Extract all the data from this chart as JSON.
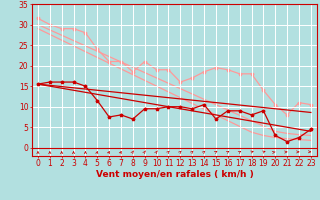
{
  "background_color": "#b2e0e0",
  "grid_color": "#ffffff",
  "line_color_dark": "#cc0000",
  "line_color_light": "#ff9999",
  "xlabel": "Vent moyen/en rafales ( km/h )",
  "xlabel_color": "#cc0000",
  "xlabel_fontsize": 6.5,
  "tick_color": "#cc0000",
  "tick_fontsize": 5.5,
  "xlim": [
    -0.5,
    23.5
  ],
  "ylim": [
    -2,
    35
  ],
  "yticks": [
    0,
    5,
    10,
    15,
    20,
    25,
    30,
    35
  ],
  "xticks": [
    0,
    1,
    2,
    3,
    4,
    5,
    6,
    7,
    8,
    9,
    10,
    11,
    12,
    13,
    14,
    15,
    16,
    17,
    18,
    19,
    20,
    21,
    22,
    23
  ],
  "x": [
    0,
    1,
    2,
    3,
    4,
    5,
    6,
    7,
    8,
    9,
    10,
    11,
    12,
    13,
    14,
    15,
    16,
    17,
    18,
    19,
    20,
    21,
    22,
    23
  ],
  "line1_y": [
    15.5,
    16,
    16,
    16,
    15,
    11.5,
    7.5,
    8,
    7,
    9.5,
    9.5,
    10,
    10,
    9.5,
    10.5,
    7,
    9,
    9,
    8,
    9,
    3,
    1.5,
    2.5,
    4.5
  ],
  "line2_y": [
    15.5,
    15,
    14.5,
    14,
    13.5,
    13,
    12.5,
    12,
    11.5,
    11,
    10.5,
    10,
    9.5,
    9,
    8.5,
    8,
    7.5,
    7,
    6.5,
    6,
    5.5,
    5,
    4.5,
    4
  ],
  "line3_y": [
    15.5,
    15.2,
    14.9,
    14.6,
    14.3,
    14.0,
    13.7,
    13.4,
    13.1,
    12.8,
    12.5,
    12.2,
    11.9,
    11.6,
    11.3,
    11.0,
    10.7,
    10.4,
    10.1,
    9.8,
    9.5,
    9.2,
    8.9,
    8.6
  ],
  "line4_light1_y": [
    31.5,
    30,
    29,
    29,
    28,
    24,
    21,
    21,
    18.5,
    21,
    19,
    19,
    16,
    17,
    18.5,
    19.5,
    19,
    18,
    18,
    14,
    10.5,
    8,
    11,
    10.5
  ],
  "line5_light2_y": [
    29.0,
    27.6,
    26.2,
    24.8,
    23.4,
    22.0,
    20.6,
    19.2,
    17.8,
    16.4,
    15.0,
    13.6,
    12.2,
    10.8,
    9.4,
    8.0,
    6.6,
    5.2,
    3.8,
    3.0,
    2.5,
    2.2,
    2.0,
    1.8
  ],
  "line6_light3_y": [
    30.0,
    28.7,
    27.4,
    26.1,
    24.8,
    23.5,
    22.2,
    20.9,
    19.6,
    18.3,
    17.0,
    15.7,
    14.4,
    13.1,
    11.8,
    10.5,
    9.2,
    7.9,
    6.6,
    5.3,
    4.0,
    3.5,
    3.2,
    3.0
  ],
  "arrow_angles": [
    0,
    0,
    0,
    0,
    0,
    5,
    10,
    10,
    15,
    15,
    15,
    20,
    20,
    20,
    20,
    25,
    30,
    30,
    45,
    45,
    60,
    80,
    90,
    100
  ]
}
